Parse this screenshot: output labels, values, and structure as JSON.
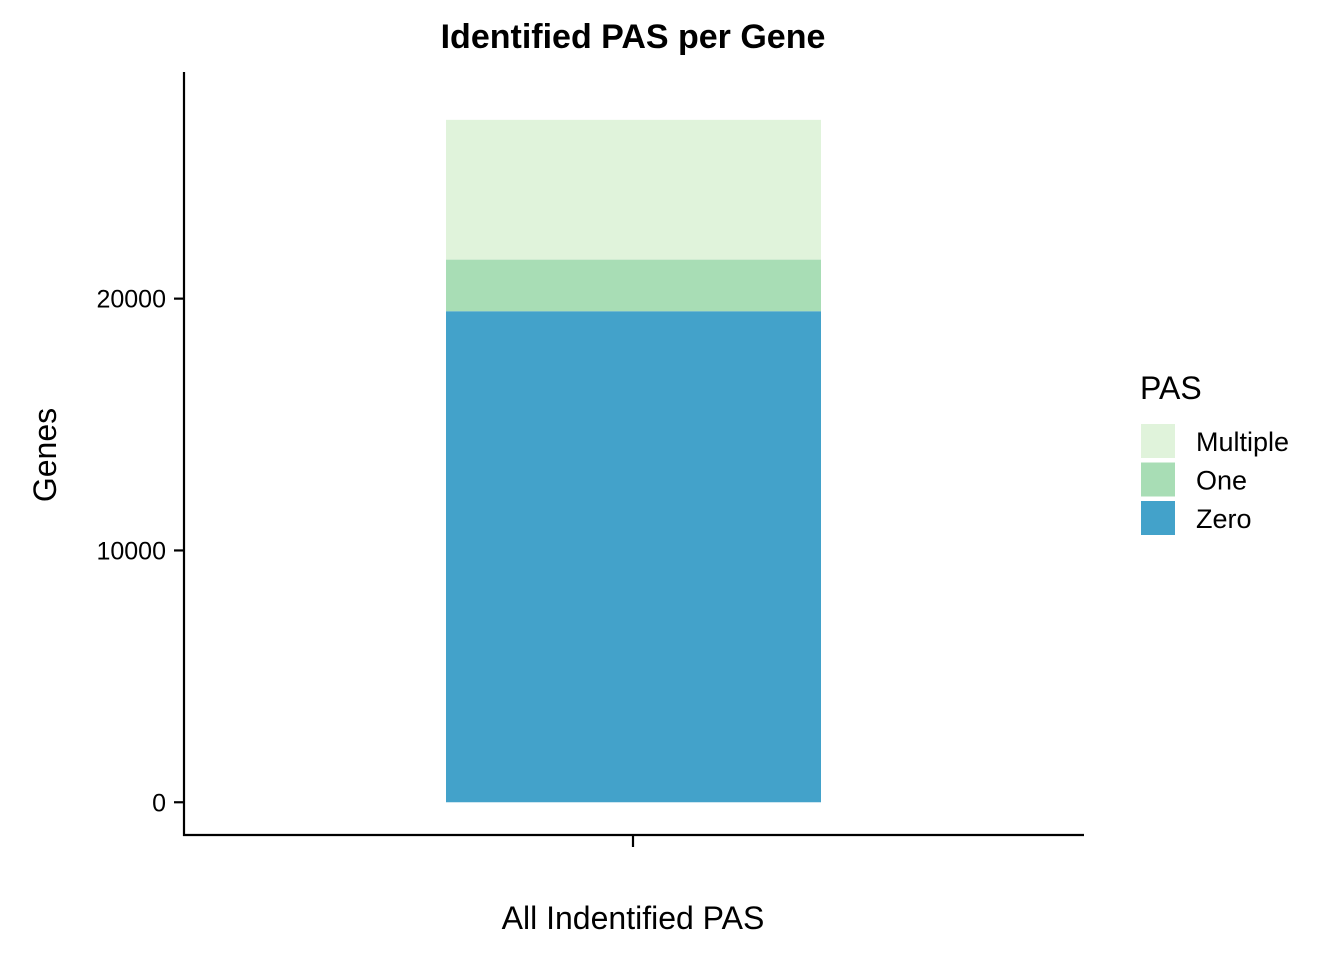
{
  "chart_data": {
    "type": "bar",
    "stacked": true,
    "title": "Identified PAS per Gene",
    "xlabel": "All Indentified PAS",
    "ylabel": "Genes",
    "categories": [
      ""
    ],
    "ylim": [
      -1300,
      29000
    ],
    "yticks": [
      0,
      10000,
      20000
    ],
    "ytick_labels": [
      "0",
      "10000",
      "20000"
    ],
    "series": [
      {
        "name": "Zero",
        "values": [
          19500
        ],
        "color": "#43a2ca"
      },
      {
        "name": "One",
        "values": [
          2050
        ],
        "color": "#a8ddb5"
      },
      {
        "name": "Multiple",
        "values": [
          5550
        ],
        "color": "#e0f3db"
      }
    ],
    "legend": {
      "title": "PAS",
      "position": "right",
      "order": [
        "Multiple",
        "One",
        "Zero"
      ]
    },
    "grid": false
  }
}
